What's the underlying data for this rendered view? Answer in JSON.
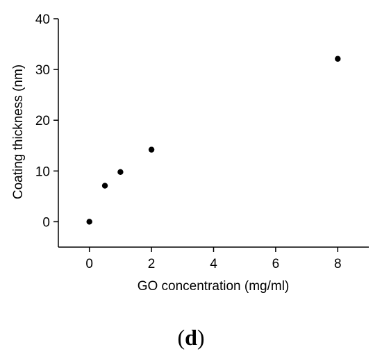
{
  "chart_data": {
    "type": "scatter",
    "xlabel": "GO concentration (mg/ml)",
    "ylabel": "Coating thickness (nm)",
    "xlim": [
      -1,
      9
    ],
    "ylim": [
      -5,
      40
    ],
    "x_ticks": [
      0,
      2,
      4,
      6,
      8
    ],
    "x_tick_labels": [
      "0",
      "2",
      "4",
      "6",
      "8"
    ],
    "y_ticks": [
      0,
      10,
      20,
      30,
      40
    ],
    "y_tick_labels": [
      "0",
      "10",
      "20",
      "30",
      "40"
    ],
    "grid": false,
    "marker_color": "#000000",
    "points": [
      {
        "x": 0,
        "y": 0
      },
      {
        "x": 0.5,
        "y": 7.1
      },
      {
        "x": 1,
        "y": 9.8
      },
      {
        "x": 2,
        "y": 14.2
      },
      {
        "x": 8,
        "y": 32.1
      }
    ]
  },
  "panel": {
    "open": "(",
    "letter": "d",
    "close": ")"
  }
}
